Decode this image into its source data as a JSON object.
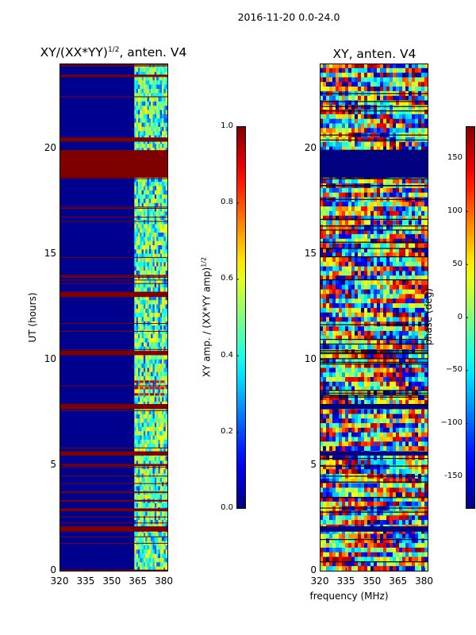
{
  "figure_title": "2016-11-20 0.0-24.0",
  "chart_data": [
    {
      "type": "heatmap",
      "title": "XY/(XX*YY)",
      "title_superscript": "1/2",
      "title_suffix": ", anten. V4",
      "xlabel": "",
      "ylabel": "UT (hours)",
      "xlim": [
        320,
        382
      ],
      "ylim": [
        0,
        24
      ],
      "xticks": [
        "320",
        "335",
        "350",
        "365",
        "380"
      ],
      "yticks": [
        "0",
        "5",
        "10",
        "15",
        "20"
      ],
      "colorbar": {
        "label": "XY amp. / (XX*YY amp)",
        "label_superscript": "1/2",
        "min": 0.0,
        "max": 1.0,
        "ticks": [
          "0.0",
          "0.2",
          "0.4",
          "0.6",
          "0.8",
          "1.0"
        ],
        "colormap": "jet"
      },
      "saturated_hour_bands": [
        [
          0.0,
          0.05
        ],
        [
          1.85,
          2.1
        ],
        [
          2.85,
          2.95
        ],
        [
          3.3,
          3.35
        ],
        [
          4.95,
          5.05
        ],
        [
          5.45,
          5.65
        ],
        [
          7.65,
          7.85
        ],
        [
          10.2,
          10.4
        ],
        [
          12.95,
          13.2
        ],
        [
          18.6,
          19.9
        ],
        [
          20.3,
          20.5
        ]
      ],
      "rfi_channel_range_mhz": [
        363,
        382
      ]
    },
    {
      "type": "heatmap",
      "title": "XY, anten. V4",
      "xlabel": "frequency (MHz)",
      "ylabel": "",
      "xlim": [
        320,
        382
      ],
      "ylim": [
        0,
        24
      ],
      "xticks": [
        "320",
        "335",
        "350",
        "365",
        "380"
      ],
      "yticks": [
        "0",
        "5",
        "10",
        "15",
        "20"
      ],
      "colorbar": {
        "label": "phase (deg)",
        "min": -180,
        "max": 180,
        "ticks": [
          "-150",
          "−100",
          "−50",
          "0",
          "50",
          "100",
          "150"
        ],
        "colormap": "jet"
      },
      "masked_hour_bands": [
        [
          18.6,
          19.9
        ],
        [
          7.65,
          7.85
        ],
        [
          5.45,
          5.65
        ],
        [
          1.85,
          2.1
        ]
      ]
    }
  ],
  "colors": {
    "jet_dark_blue": "#00008f",
    "jet_dark_red": "#800000",
    "phase_mask": "#000080"
  }
}
